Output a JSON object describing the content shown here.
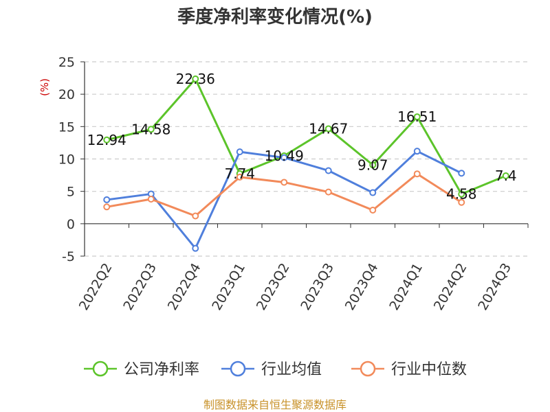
{
  "chart_data": {
    "type": "line",
    "title": "季度净利率变化情况(%)",
    "ylabel": "(%)",
    "xlabel": "",
    "categories": [
      "2022Q2",
      "2022Q3",
      "2022Q4",
      "2023Q1",
      "2023Q2",
      "2023Q3",
      "2023Q4",
      "2024Q1",
      "2024Q2",
      "2024Q3"
    ],
    "ylim": [
      -5,
      25
    ],
    "yticks": [
      -5,
      0,
      5,
      10,
      15,
      20,
      25
    ],
    "grid": true,
    "legend_position": "bottom",
    "series": [
      {
        "name": "公司净利率",
        "color": "#5cc42a",
        "values": [
          12.94,
          14.58,
          22.36,
          7.74,
          10.49,
          14.67,
          9.07,
          16.51,
          4.58,
          7.4
        ],
        "labels": [
          "12.94",
          "14.58",
          "22.36",
          "7.74",
          "10.49",
          "14.67",
          "9.07",
          "16.51",
          "4.58",
          "7.4"
        ]
      },
      {
        "name": "行业均值",
        "color": "#4f7fdc",
        "values": [
          3.7,
          4.6,
          -3.8,
          11.1,
          10.2,
          8.2,
          4.8,
          11.2,
          7.8,
          null
        ]
      },
      {
        "name": "行业中位数",
        "color": "#f28a5a",
        "values": [
          2.6,
          3.8,
          1.2,
          7.2,
          6.4,
          4.9,
          2.1,
          7.7,
          3.3,
          null
        ]
      }
    ]
  },
  "footer": {
    "source": "制图数据来自恒生聚源数据库"
  }
}
